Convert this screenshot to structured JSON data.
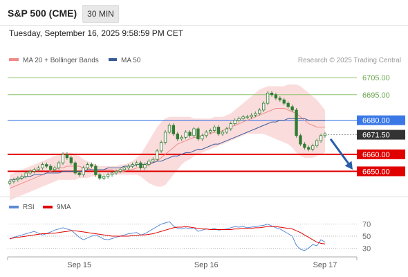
{
  "header": {
    "title": "S&P 500 (CME)",
    "timeframe": "30 MIN"
  },
  "datetime": "Tuesday, September 16, 2025 9:58:59 PM CET",
  "colors": {
    "ma20": "#f08b8b",
    "ma50": "#3a5a9a",
    "bollinger": "#f9d0d0",
    "resistance": "#8dc26b",
    "pivot": "#3b78e7",
    "support": "#e00000",
    "candle": "#2e7d32",
    "rsi": "#5b8bd6",
    "rsi_ma": "#e00000",
    "price_tag": "#333333",
    "arrow": "#2a5da8"
  },
  "chart_data": [
    {
      "type": "candlestick",
      "legend": [
        {
          "label": "MA 20 + Bollinger Bands",
          "color": "#f08b8b"
        },
        {
          "label": "MA 50",
          "color": "#3a5a9a"
        }
      ],
      "watermark": "Research © 2025 Trading Central",
      "ylim": [
        6640,
        6712
      ],
      "x_ticks": [
        {
          "label": "Sep 15",
          "index": 17
        },
        {
          "label": "Sep 16",
          "index": 48
        },
        {
          "label": "Sep 17",
          "index": 77
        }
      ],
      "levels": [
        {
          "label": "6705.00",
          "value": 6705,
          "kind": "resistance"
        },
        {
          "label": "6695.00",
          "value": 6695,
          "kind": "resistance"
        },
        {
          "label": "6680.00",
          "value": 6680,
          "kind": "pivot"
        },
        {
          "label": "6671.50",
          "value": 6671.5,
          "kind": "last"
        },
        {
          "label": "6660.00",
          "value": 6660,
          "kind": "support"
        },
        {
          "label": "6650.00",
          "value": 6650,
          "kind": "support"
        }
      ],
      "closes": [
        6644,
        6645,
        6646,
        6647,
        6649,
        6650,
        6651,
        6652,
        6654,
        6653,
        6651,
        6652,
        6655,
        6660,
        6658,
        6655,
        6649,
        6648,
        6652,
        6654,
        6653,
        6648,
        6646,
        6647,
        6648,
        6649,
        6650,
        6651,
        6652,
        6653,
        6654,
        6655,
        6652,
        6654,
        6656,
        6657,
        6662,
        6667,
        6673,
        6677,
        6672,
        6669,
        6670,
        6673,
        6671,
        6675,
        6669,
        6671,
        6673,
        6674,
        6676,
        6672,
        6673,
        6675,
        6678,
        6680,
        6681,
        6682,
        6682,
        6683,
        6684,
        6686,
        6690,
        6696,
        6695,
        6693,
        6692,
        6690,
        6688,
        6686,
        6671,
        6666,
        6664,
        6663,
        6665,
        6668,
        6671,
        6672
      ],
      "ma20": [
        6640,
        6641,
        6642,
        6643,
        6644,
        6645,
        6646,
        6647,
        6648,
        6649,
        6650,
        6651,
        6652,
        6652,
        6653,
        6653,
        6653,
        6653,
        6652,
        6652,
        6651,
        6651,
        6651,
        6651,
        6651,
        6651,
        6650,
        6650,
        6650,
        6651,
        6651,
        6652,
        6652,
        6653,
        6654,
        6655,
        6656,
        6658,
        6660,
        6662,
        6664,
        6666,
        6667,
        6668,
        6669,
        6670,
        6670,
        6671,
        6672,
        6672,
        6673,
        6673,
        6674,
        6675,
        6676,
        6677,
        6678,
        6679,
        6680,
        6681,
        6682,
        6683,
        6684,
        6685,
        6686,
        6687,
        6687,
        6687,
        6686,
        6685,
        6684,
        6682,
        6680,
        6678,
        6677,
        6676,
        6676,
        6676
      ],
      "bb_upper": [
        6648,
        6649,
        6650,
        6651,
        6652,
        6653,
        6654,
        6655,
        6656,
        6657,
        6658,
        6659,
        6660,
        6661,
        6661,
        6661,
        6660,
        6659,
        6657,
        6656,
        6655,
        6654,
        6653,
        6653,
        6653,
        6653,
        6653,
        6654,
        6654,
        6655,
        6656,
        6658,
        6660,
        6664,
        6668,
        6672,
        6676,
        6679,
        6681,
        6682,
        6682,
        6682,
        6682,
        6682,
        6682,
        6681,
        6681,
        6681,
        6681,
        6681,
        6682,
        6682,
        6682,
        6683,
        6684,
        6686,
        6688,
        6690,
        6692,
        6694,
        6696,
        6698,
        6699,
        6700,
        6700,
        6700,
        6700,
        6700,
        6701,
        6701,
        6701,
        6700,
        6698,
        6696,
        6694,
        6692,
        6689,
        6686
      ],
      "bb_lower": [
        6633,
        6634,
        6635,
        6636,
        6637,
        6638,
        6639,
        6640,
        6641,
        6642,
        6643,
        6644,
        6645,
        6645,
        6645,
        6645,
        6645,
        6646,
        6646,
        6646,
        6647,
        6647,
        6647,
        6648,
        6648,
        6648,
        6648,
        6648,
        6648,
        6648,
        6648,
        6648,
        6647,
        6645,
        6643,
        6642,
        6641,
        6641,
        6642,
        6645,
        6648,
        6651,
        6654,
        6656,
        6657,
        6659,
        6660,
        6661,
        6662,
        6663,
        6664,
        6665,
        6666,
        6667,
        6668,
        6669,
        6670,
        6671,
        6672,
        6672,
        6672,
        6672,
        6672,
        6671,
        6670,
        6669,
        6668,
        6667,
        6666,
        6664,
        6661,
        6659,
        6658,
        6658,
        6658,
        6659,
        6660,
        6661
      ],
      "ma50": [
        6645,
        6645,
        6646,
        6646,
        6647,
        6647,
        6648,
        6648,
        6648,
        6649,
        6649,
        6649,
        6649,
        6650,
        6650,
        6650,
        6650,
        6650,
        6650,
        6651,
        6651,
        6651,
        6651,
        6651,
        6652,
        6652,
        6652,
        6652,
        6653,
        6653,
        6653,
        6654,
        6654,
        6654,
        6655,
        6655,
        6656,
        6656,
        6657,
        6658,
        6659,
        6659,
        6660,
        6661,
        6661,
        6662,
        6663,
        6663,
        6664,
        6665,
        6666,
        6666,
        6667,
        6668,
        6669,
        6670,
        6671,
        6672,
        6673,
        6674,
        6675,
        6676,
        6677,
        6678,
        6679,
        6679,
        6680,
        6680,
        6681,
        6681,
        6681,
        6681,
        6681,
        6680,
        6680,
        6680,
        6680,
        6680
      ],
      "forecast_arrow": {
        "from": 6669,
        "to": 6651
      }
    },
    {
      "type": "line",
      "legend": [
        {
          "label": "RSI",
          "color": "#5b8bd6"
        },
        {
          "label": "9MA",
          "color": "#e00000"
        }
      ],
      "ylim": [
        20,
        80
      ],
      "y_ticks": [
        70,
        50,
        30
      ],
      "rsi": [
        45,
        48,
        50,
        52,
        54,
        56,
        58,
        55,
        52,
        54,
        57,
        60,
        62,
        64,
        62,
        60,
        54,
        48,
        44,
        47,
        50,
        52,
        49,
        45,
        44,
        46,
        48,
        50,
        52,
        54,
        55,
        56,
        52,
        54,
        58,
        62,
        66,
        70,
        72,
        74,
        67,
        63,
        62,
        64,
        62,
        64,
        58,
        60,
        62,
        61,
        63,
        60,
        61,
        62,
        64,
        66,
        65,
        66,
        64,
        65,
        66,
        67,
        68,
        70,
        67,
        64,
        62,
        58,
        54,
        50,
        35,
        28,
        26,
        30,
        36,
        34,
        44,
        40
      ],
      "rsi_ma": [
        46,
        47,
        48,
        49,
        50,
        51,
        52,
        53,
        54,
        54,
        55,
        55,
        56,
        57,
        58,
        59,
        59,
        58,
        57,
        56,
        55,
        54,
        53,
        52,
        51,
        50,
        50,
        50,
        50,
        50,
        51,
        51,
        52,
        52,
        53,
        54,
        56,
        58,
        60,
        62,
        64,
        65,
        65,
        66,
        65,
        64,
        63,
        62,
        62,
        61,
        61,
        61,
        61,
        61,
        61,
        62,
        62,
        63,
        63,
        63,
        64,
        64,
        65,
        66,
        66,
        66,
        65,
        64,
        63,
        62,
        59,
        56,
        52,
        48,
        44,
        40,
        38,
        37
      ]
    }
  ]
}
